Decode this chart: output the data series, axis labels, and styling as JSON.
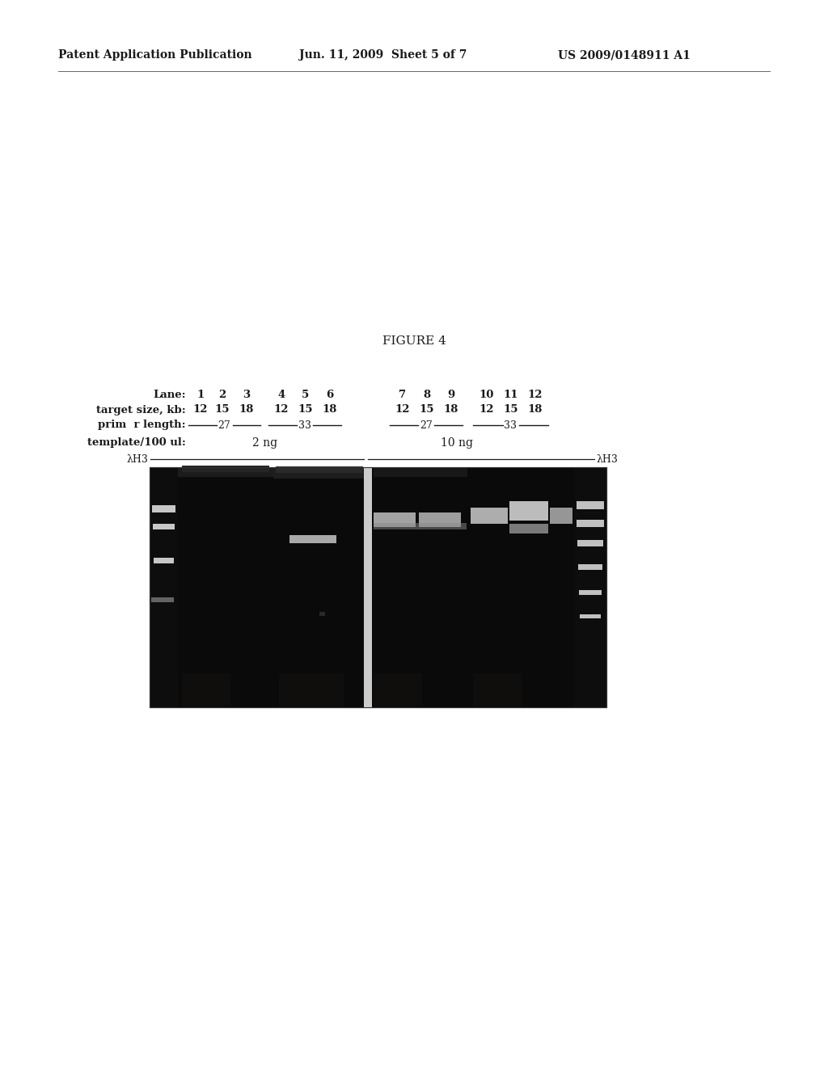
{
  "page_title_left": "Patent Application Publication",
  "page_title_center": "Jun. 11, 2009  Sheet 5 of 7",
  "page_title_right": "US 2009/0148911 A1",
  "figure_label": "FIGURE 4",
  "header_row1_label": "Lane:",
  "header_row1_values": [
    "1",
    "2",
    "3",
    "4",
    "5",
    "6",
    "7",
    "8",
    "9",
    "10",
    "11",
    "12"
  ],
  "header_row2_label": "target size, kb:",
  "header_row2_values": [
    "12",
    "15",
    "18",
    "12",
    "15",
    "18",
    "12",
    "15",
    "18",
    "12",
    "15",
    "18"
  ],
  "header_row3_label": "prim  r length:",
  "header_row4_label": "template/100 ul:",
  "header_row4_val1": "2 ng",
  "header_row4_val2": "10 ng",
  "lambda_label": "λH3",
  "background_color": "#ffffff",
  "text_color": "#1a1a1a"
}
